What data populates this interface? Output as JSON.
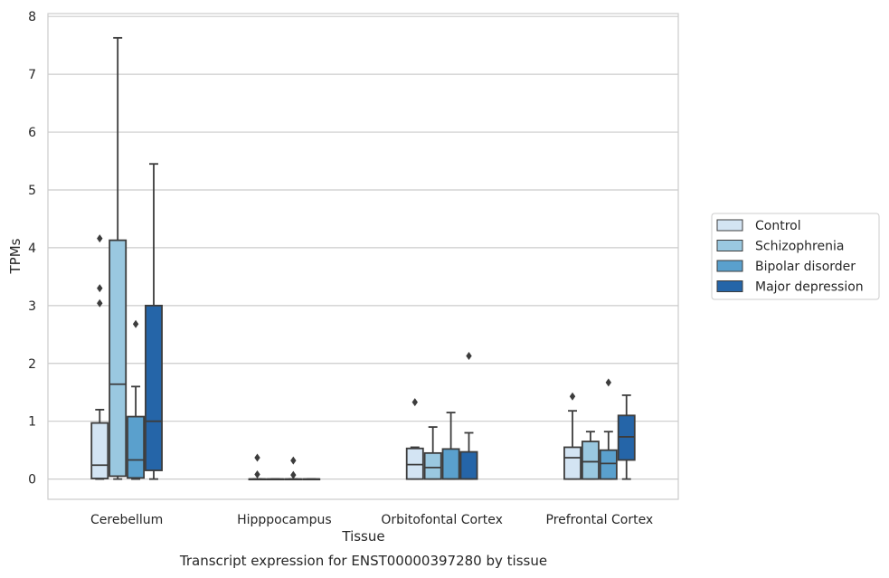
{
  "chart_data": {
    "type": "box",
    "title": "",
    "caption": "Transcript expression for ENST00000397280 by tissue",
    "xlabel": "Tissue",
    "ylabel": "TPMs",
    "ylim": [
      -0.35,
      8.05
    ],
    "yticks": [
      "0",
      "1",
      "2",
      "3",
      "4",
      "5",
      "6",
      "7",
      "8"
    ],
    "grid": "horizontal",
    "legend_position": "right",
    "categories": [
      "Cerebellum",
      "Hipppocampus",
      "Orbitofontal Cortex",
      "Prefrontal Cortex"
    ],
    "series": [
      {
        "name": "Control",
        "color": "#d3e4f3",
        "boxes": [
          {
            "q1": 0.01,
            "median": 0.24,
            "q3": 0.97,
            "whisker_low": 0.0,
            "whisker_high": 1.2,
            "outliers": [
              3.04,
              3.3,
              4.16
            ]
          },
          {
            "q1": 0.0,
            "median": 0.0,
            "q3": 0.0,
            "whisker_low": 0.0,
            "whisker_high": 0.0,
            "outliers": [
              0.08,
              0.37
            ]
          },
          {
            "q1": 0.0,
            "median": 0.25,
            "q3": 0.53,
            "whisker_low": 0.0,
            "whisker_high": 0.55,
            "outliers": [
              1.33
            ]
          },
          {
            "q1": 0.0,
            "median": 0.37,
            "q3": 0.55,
            "whisker_low": 0.0,
            "whisker_high": 1.18,
            "outliers": [
              1.43
            ]
          }
        ]
      },
      {
        "name": "Schizophrenia",
        "color": "#9ac8e0",
        "boxes": [
          {
            "q1": 0.05,
            "median": 1.64,
            "q3": 4.13,
            "whisker_low": 0.0,
            "whisker_high": 7.63,
            "outliers": []
          },
          {
            "q1": 0.0,
            "median": 0.0,
            "q3": 0.0,
            "whisker_low": 0.0,
            "whisker_high": 0.0,
            "outliers": []
          },
          {
            "q1": 0.0,
            "median": 0.2,
            "q3": 0.45,
            "whisker_low": 0.0,
            "whisker_high": 0.9,
            "outliers": []
          },
          {
            "q1": 0.0,
            "median": 0.3,
            "q3": 0.65,
            "whisker_low": 0.0,
            "whisker_high": 0.82,
            "outliers": []
          }
        ]
      },
      {
        "name": "Bipolar disorder",
        "color": "#5aa0cd",
        "boxes": [
          {
            "q1": 0.02,
            "median": 0.33,
            "q3": 1.08,
            "whisker_low": 0.0,
            "whisker_high": 1.6,
            "outliers": [
              2.68
            ]
          },
          {
            "q1": 0.0,
            "median": 0.0,
            "q3": 0.0,
            "whisker_low": 0.0,
            "whisker_high": 0.0,
            "outliers": [
              0.07,
              0.32
            ]
          },
          {
            "q1": 0.0,
            "median": 0.0,
            "q3": 0.52,
            "whisker_low": 0.0,
            "whisker_high": 1.15,
            "outliers": []
          },
          {
            "q1": 0.0,
            "median": 0.27,
            "q3": 0.5,
            "whisker_low": 0.0,
            "whisker_high": 0.82,
            "outliers": [
              1.67
            ]
          }
        ]
      },
      {
        "name": "Major depression",
        "color": "#2565a8",
        "boxes": [
          {
            "q1": 0.15,
            "median": 1.0,
            "q3": 3.0,
            "whisker_low": 0.0,
            "whisker_high": 5.45,
            "outliers": []
          },
          {
            "q1": 0.0,
            "median": 0.0,
            "q3": 0.0,
            "whisker_low": 0.0,
            "whisker_high": 0.0,
            "outliers": []
          },
          {
            "q1": 0.0,
            "median": 0.0,
            "q3": 0.47,
            "whisker_low": 0.0,
            "whisker_high": 0.8,
            "outliers": [
              2.13
            ]
          },
          {
            "q1": 0.33,
            "median": 0.73,
            "q3": 1.1,
            "whisker_low": 0.0,
            "whisker_high": 1.45,
            "outliers": []
          }
        ]
      }
    ]
  }
}
